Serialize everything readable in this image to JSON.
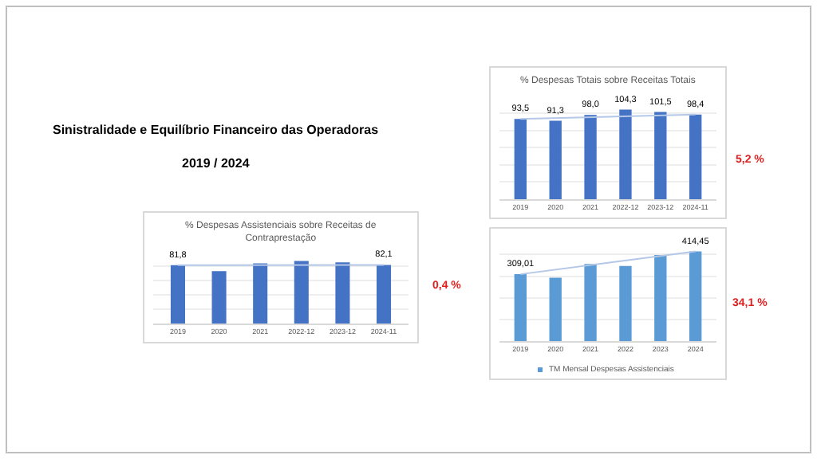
{
  "chart_data": [
    {
      "type": "other",
      "title": "Sinistralidade e Equilíbrio Financeiro das Operadoras",
      "subtitle": "2019 / 2024"
    },
    {
      "type": "bar",
      "title": "% Despesas Totais sobre Receitas Totais",
      "categories": [
        "2019",
        "2020",
        "2021",
        "2022-12",
        "2023-12",
        "2024-11"
      ],
      "tick_labels": "x",
      "grid": "y",
      "annotations": [
        "5,2 %"
      ],
      "series": [
        {
          "color": "#4472c4",
          "values": [
            93.5,
            91.3,
            98.0,
            104.3,
            101.5,
            98.4
          ],
          "value_labels": [
            "93,5",
            "91,3",
            "98,0",
            "104,3",
            "101,5",
            "98,4"
          ]
        },
        {
          "type": "line",
          "color": "#b4c7e7",
          "values": [
            93.5,
            null,
            null,
            null,
            null,
            98.4
          ]
        }
      ]
    },
    {
      "type": "bar",
      "title": "% Despesas Assistenciais sobre Receitas de Contraprestação",
      "categories": [
        "2019",
        "2020",
        "2021",
        "2022-12",
        "2023-12",
        "2024-11"
      ],
      "tick_labels": "x",
      "grid": "y",
      "annotations": [
        "0,4 %"
      ],
      "series": [
        {
          "color": "#4472c4",
          "values": [
            81.8,
            73.5,
            84.4,
            87.7,
            85.8,
            82.1
          ],
          "value_labels": [
            "81,8",
            null,
            null,
            null,
            null,
            "82,1"
          ]
        },
        {
          "type": "line",
          "color": "#b4c7e7",
          "values": [
            81.8,
            null,
            null,
            null,
            null,
            82.1
          ]
        }
      ]
    },
    {
      "type": "bar",
      "categories": [
        "2019",
        "2020",
        "2021",
        "2022",
        "2023",
        "2024"
      ],
      "tick_labels": "x",
      "grid": "y",
      "legend": "bottom",
      "annotations": [
        "34,1 %"
      ],
      "series": [
        {
          "name": "TM Mensal Despesas Assistenciais",
          "color": "#5b9bd5",
          "values": [
            309.01,
            293,
            356,
            347,
            398,
            414.45
          ],
          "value_labels": [
            "309,01",
            null,
            null,
            null,
            null,
            "414,45"
          ]
        },
        {
          "type": "line",
          "color": "#b4c7e7",
          "values": [
            309.01,
            null,
            null,
            null,
            null,
            414.45
          ]
        }
      ]
    }
  ]
}
